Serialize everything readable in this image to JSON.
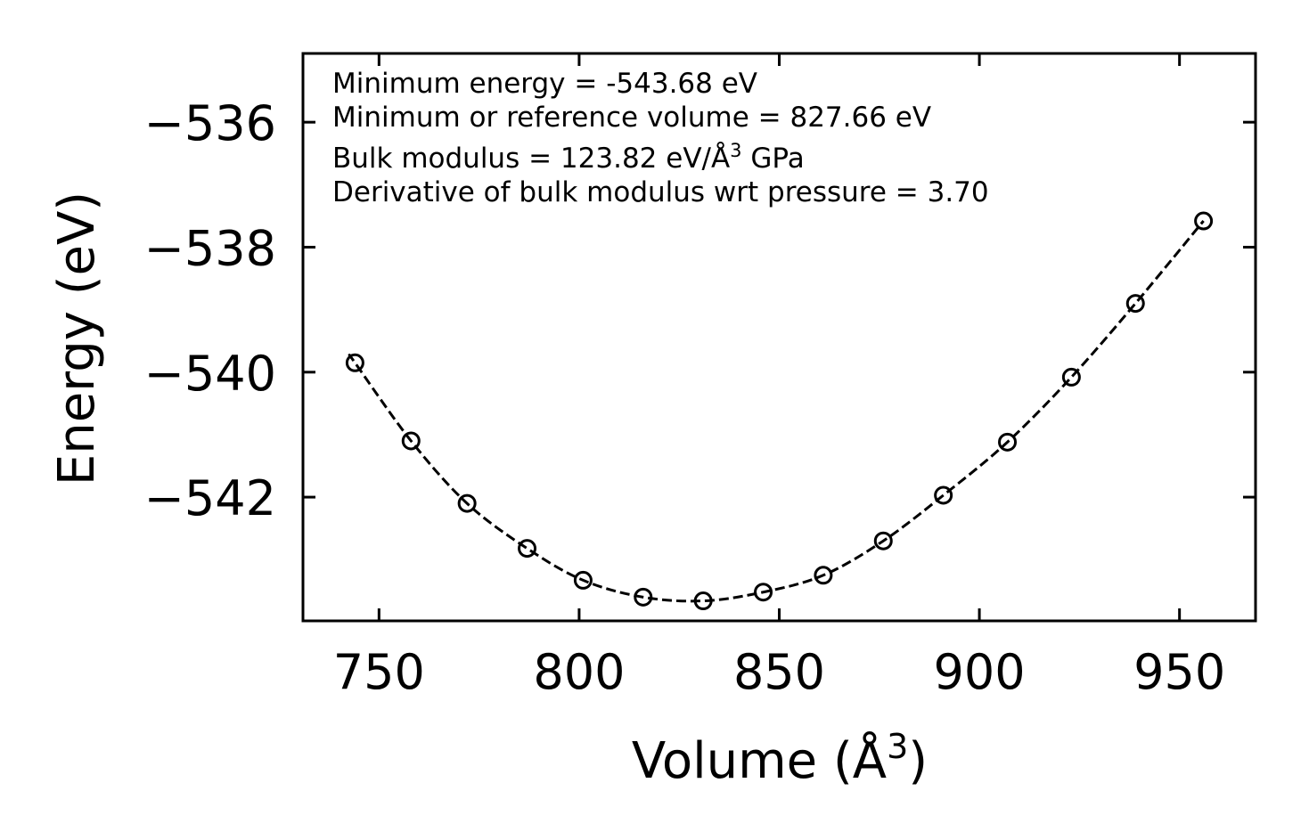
{
  "chart_data": {
    "type": "scatter",
    "title": "",
    "xlabel": "Volume (Å",
    "xlabel_sup": "3",
    "xlabel_end": ")",
    "ylabel": "Energy (eV)",
    "xlim": [
      731,
      969
    ],
    "ylim": [
      -543.98,
      -534.9
    ],
    "xticks": [
      750,
      800,
      850,
      900,
      950
    ],
    "yticks": [
      -536,
      -538,
      -540,
      -542
    ],
    "xtick_labels": [
      "750",
      "800",
      "850",
      "900",
      "950"
    ],
    "ytick_labels": [
      "−536",
      "−538",
      "−540",
      "−542"
    ],
    "series": [
      {
        "name": "data",
        "marker": "open-circle",
        "x": [
          744,
          758,
          772,
          787,
          801,
          816,
          831,
          846,
          861,
          876,
          891,
          907,
          923,
          939,
          956
        ],
        "y": [
          -539.85,
          -541.1,
          -542.1,
          -542.82,
          -543.33,
          -543.6,
          -543.66,
          -543.52,
          -543.25,
          -542.7,
          -541.97,
          -541.12,
          -540.08,
          -538.9,
          -537.58
        ]
      }
    ],
    "fit": {
      "name": "fit",
      "style": "dashed",
      "x_range": [
        743,
        956
      ],
      "minimum_volume": 827.66,
      "minimum_energy": -543.68
    },
    "annotations": {
      "line1": "Minimum energy = -543.68 eV",
      "line2": "Minimum or reference volume = 827.66 eV",
      "line3": "Bulk modulus = 123.82 eV/Å",
      "line3_sup": "3",
      "line3_end": " GPa",
      "line4": "Derivative of bulk modulus wrt pressure = 3.70"
    },
    "grid": false,
    "legend": "none"
  }
}
